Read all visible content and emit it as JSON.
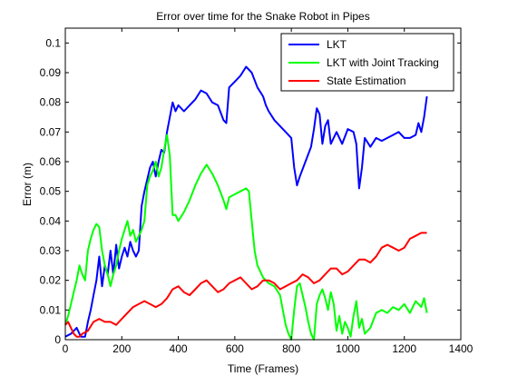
{
  "chart_data": {
    "type": "line",
    "title": "Error over time for the Snake Robot in Pipes",
    "xlabel": "Time (Frames)",
    "ylabel": "Error (m)",
    "xlim": [
      0,
      1400
    ],
    "ylim": [
      0,
      0.105
    ],
    "x_ticks": [
      0,
      200,
      400,
      600,
      800,
      1000,
      1200,
      1400
    ],
    "x_tick_labels": [
      "0",
      "200",
      "400",
      "600",
      "800",
      "1000",
      "1200",
      "1400"
    ],
    "y_ticks": [
      0,
      0.01,
      0.02,
      0.03,
      0.04,
      0.05,
      0.06,
      0.07,
      0.08,
      0.09,
      0.1
    ],
    "y_tick_labels": [
      "0",
      "0.01",
      "0.02",
      "0.03",
      "0.04",
      "0.05",
      "0.06",
      "0.07",
      "0.08",
      "0.09",
      "0.1"
    ],
    "grid": false,
    "legend_position": "top-right",
    "series": [
      {
        "name": "LKT",
        "color": "#0000ff",
        "points": [
          [
            0,
            0.001
          ],
          [
            20,
            0.002
          ],
          [
            40,
            0.004
          ],
          [
            55,
            0.001
          ],
          [
            70,
            0.001
          ],
          [
            80,
            0.006
          ],
          [
            90,
            0.01
          ],
          [
            100,
            0.015
          ],
          [
            110,
            0.02
          ],
          [
            120,
            0.028
          ],
          [
            130,
            0.018
          ],
          [
            140,
            0.025
          ],
          [
            150,
            0.022
          ],
          [
            160,
            0.03
          ],
          [
            170,
            0.022
          ],
          [
            180,
            0.032
          ],
          [
            190,
            0.024
          ],
          [
            200,
            0.028
          ],
          [
            210,
            0.031
          ],
          [
            220,
            0.028
          ],
          [
            230,
            0.033
          ],
          [
            240,
            0.03
          ],
          [
            250,
            0.028
          ],
          [
            260,
            0.03
          ],
          [
            270,
            0.045
          ],
          [
            280,
            0.05
          ],
          [
            290,
            0.054
          ],
          [
            300,
            0.058
          ],
          [
            310,
            0.06
          ],
          [
            320,
            0.055
          ],
          [
            330,
            0.06
          ],
          [
            340,
            0.064
          ],
          [
            350,
            0.063
          ],
          [
            360,
            0.07
          ],
          [
            370,
            0.075
          ],
          [
            380,
            0.08
          ],
          [
            390,
            0.077
          ],
          [
            400,
            0.079
          ],
          [
            420,
            0.077
          ],
          [
            440,
            0.079
          ],
          [
            460,
            0.081
          ],
          [
            480,
            0.084
          ],
          [
            500,
            0.083
          ],
          [
            520,
            0.08
          ],
          [
            540,
            0.079
          ],
          [
            560,
            0.074
          ],
          [
            570,
            0.073
          ],
          [
            580,
            0.085
          ],
          [
            600,
            0.087
          ],
          [
            620,
            0.089
          ],
          [
            640,
            0.092
          ],
          [
            660,
            0.09
          ],
          [
            680,
            0.085
          ],
          [
            700,
            0.082
          ],
          [
            710,
            0.079
          ],
          [
            720,
            0.077
          ],
          [
            740,
            0.074
          ],
          [
            760,
            0.072
          ],
          [
            780,
            0.07
          ],
          [
            800,
            0.068
          ],
          [
            810,
            0.058
          ],
          [
            820,
            0.052
          ],
          [
            830,
            0.055
          ],
          [
            850,
            0.06
          ],
          [
            870,
            0.065
          ],
          [
            880,
            0.071
          ],
          [
            890,
            0.078
          ],
          [
            900,
            0.076
          ],
          [
            910,
            0.066
          ],
          [
            920,
            0.072
          ],
          [
            930,
            0.074
          ],
          [
            940,
            0.066
          ],
          [
            960,
            0.07
          ],
          [
            980,
            0.066
          ],
          [
            1000,
            0.071
          ],
          [
            1020,
            0.07
          ],
          [
            1030,
            0.066
          ],
          [
            1040,
            0.051
          ],
          [
            1050,
            0.058
          ],
          [
            1060,
            0.068
          ],
          [
            1080,
            0.065
          ],
          [
            1100,
            0.068
          ],
          [
            1120,
            0.067
          ],
          [
            1140,
            0.068
          ],
          [
            1160,
            0.069
          ],
          [
            1180,
            0.07
          ],
          [
            1200,
            0.068
          ],
          [
            1220,
            0.068
          ],
          [
            1240,
            0.069
          ],
          [
            1250,
            0.073
          ],
          [
            1260,
            0.07
          ],
          [
            1270,
            0.075
          ],
          [
            1280,
            0.082
          ]
        ]
      },
      {
        "name": "LKT with Joint Tracking",
        "color": "#00ff00",
        "points": [
          [
            0,
            0.005
          ],
          [
            10,
            0.008
          ],
          [
            20,
            0.012
          ],
          [
            30,
            0.016
          ],
          [
            40,
            0.02
          ],
          [
            50,
            0.025
          ],
          [
            60,
            0.022
          ],
          [
            70,
            0.02
          ],
          [
            80,
            0.03
          ],
          [
            90,
            0.034
          ],
          [
            100,
            0.037
          ],
          [
            110,
            0.039
          ],
          [
            120,
            0.038
          ],
          [
            130,
            0.03
          ],
          [
            140,
            0.025
          ],
          [
            150,
            0.022
          ],
          [
            160,
            0.018
          ],
          [
            170,
            0.022
          ],
          [
            180,
            0.025
          ],
          [
            190,
            0.03
          ],
          [
            200,
            0.034
          ],
          [
            210,
            0.037
          ],
          [
            220,
            0.04
          ],
          [
            230,
            0.035
          ],
          [
            240,
            0.037
          ],
          [
            250,
            0.033
          ],
          [
            260,
            0.035
          ],
          [
            270,
            0.037
          ],
          [
            280,
            0.04
          ],
          [
            290,
            0.052
          ],
          [
            300,
            0.055
          ],
          [
            310,
            0.057
          ],
          [
            320,
            0.06
          ],
          [
            330,
            0.055
          ],
          [
            340,
            0.058
          ],
          [
            350,
            0.064
          ],
          [
            360,
            0.069
          ],
          [
            370,
            0.062
          ],
          [
            380,
            0.042
          ],
          [
            390,
            0.042
          ],
          [
            400,
            0.04
          ],
          [
            420,
            0.043
          ],
          [
            440,
            0.047
          ],
          [
            460,
            0.052
          ],
          [
            480,
            0.056
          ],
          [
            500,
            0.059
          ],
          [
            520,
            0.056
          ],
          [
            540,
            0.052
          ],
          [
            560,
            0.047
          ],
          [
            570,
            0.044
          ],
          [
            580,
            0.048
          ],
          [
            600,
            0.049
          ],
          [
            620,
            0.05
          ],
          [
            640,
            0.051
          ],
          [
            650,
            0.05
          ],
          [
            660,
            0.04
          ],
          [
            670,
            0.03
          ],
          [
            680,
            0.025
          ],
          [
            700,
            0.021
          ],
          [
            720,
            0.019
          ],
          [
            740,
            0.018
          ],
          [
            760,
            0.015
          ],
          [
            770,
            0.01
          ],
          [
            780,
            0.005
          ],
          [
            790,
            0.002
          ],
          [
            800,
            0.0
          ],
          [
            810,
            0.01
          ],
          [
            820,
            0.018
          ],
          [
            830,
            0.019
          ],
          [
            840,
            0.015
          ],
          [
            850,
            0.011
          ],
          [
            860,
            0.006
          ],
          [
            870,
            0.002
          ],
          [
            880,
            0.0
          ],
          [
            890,
            0.012
          ],
          [
            900,
            0.015
          ],
          [
            910,
            0.017
          ],
          [
            920,
            0.014
          ],
          [
            930,
            0.01
          ],
          [
            940,
            0.016
          ],
          [
            950,
            0.012
          ],
          [
            960,
            0.003
          ],
          [
            970,
            0.008
          ],
          [
            980,
            0.002
          ],
          [
            990,
            0.006
          ],
          [
            1000,
            0.004
          ],
          [
            1010,
            0.001
          ],
          [
            1020,
            0.008
          ],
          [
            1030,
            0.013
          ],
          [
            1040,
            0.004
          ],
          [
            1050,
            0.007
          ],
          [
            1060,
            0.002
          ],
          [
            1080,
            0.004
          ],
          [
            1100,
            0.009
          ],
          [
            1120,
            0.01
          ],
          [
            1140,
            0.009
          ],
          [
            1160,
            0.011
          ],
          [
            1180,
            0.01
          ],
          [
            1200,
            0.012
          ],
          [
            1220,
            0.009
          ],
          [
            1240,
            0.013
          ],
          [
            1260,
            0.011
          ],
          [
            1270,
            0.014
          ],
          [
            1280,
            0.009
          ]
        ]
      },
      {
        "name": "State Estimation",
        "color": "#ff0000",
        "points": [
          [
            0,
            0.005
          ],
          [
            10,
            0.006
          ],
          [
            20,
            0.004
          ],
          [
            30,
            0.002
          ],
          [
            40,
            0.001
          ],
          [
            50,
            0.001
          ],
          [
            60,
            0.002
          ],
          [
            80,
            0.003
          ],
          [
            100,
            0.006
          ],
          [
            120,
            0.007
          ],
          [
            140,
            0.006
          ],
          [
            160,
            0.006
          ],
          [
            180,
            0.005
          ],
          [
            200,
            0.007
          ],
          [
            220,
            0.009
          ],
          [
            240,
            0.011
          ],
          [
            260,
            0.012
          ],
          [
            280,
            0.013
          ],
          [
            300,
            0.012
          ],
          [
            320,
            0.011
          ],
          [
            340,
            0.012
          ],
          [
            360,
            0.014
          ],
          [
            380,
            0.017
          ],
          [
            400,
            0.018
          ],
          [
            420,
            0.016
          ],
          [
            440,
            0.015
          ],
          [
            460,
            0.017
          ],
          [
            480,
            0.019
          ],
          [
            500,
            0.02
          ],
          [
            520,
            0.018
          ],
          [
            540,
            0.016
          ],
          [
            560,
            0.017
          ],
          [
            580,
            0.019
          ],
          [
            600,
            0.02
          ],
          [
            620,
            0.021
          ],
          [
            640,
            0.019
          ],
          [
            660,
            0.017
          ],
          [
            680,
            0.018
          ],
          [
            700,
            0.02
          ],
          [
            720,
            0.02
          ],
          [
            740,
            0.019
          ],
          [
            760,
            0.017
          ],
          [
            780,
            0.018
          ],
          [
            800,
            0.019
          ],
          [
            820,
            0.02
          ],
          [
            840,
            0.022
          ],
          [
            860,
            0.021
          ],
          [
            880,
            0.019
          ],
          [
            900,
            0.02
          ],
          [
            920,
            0.022
          ],
          [
            940,
            0.024
          ],
          [
            960,
            0.024
          ],
          [
            980,
            0.022
          ],
          [
            1000,
            0.023
          ],
          [
            1020,
            0.025
          ],
          [
            1040,
            0.027
          ],
          [
            1060,
            0.027
          ],
          [
            1080,
            0.026
          ],
          [
            1100,
            0.028
          ],
          [
            1120,
            0.031
          ],
          [
            1140,
            0.032
          ],
          [
            1160,
            0.031
          ],
          [
            1180,
            0.03
          ],
          [
            1200,
            0.031
          ],
          [
            1220,
            0.034
          ],
          [
            1240,
            0.035
          ],
          [
            1260,
            0.036
          ],
          [
            1280,
            0.036
          ]
        ]
      }
    ]
  }
}
